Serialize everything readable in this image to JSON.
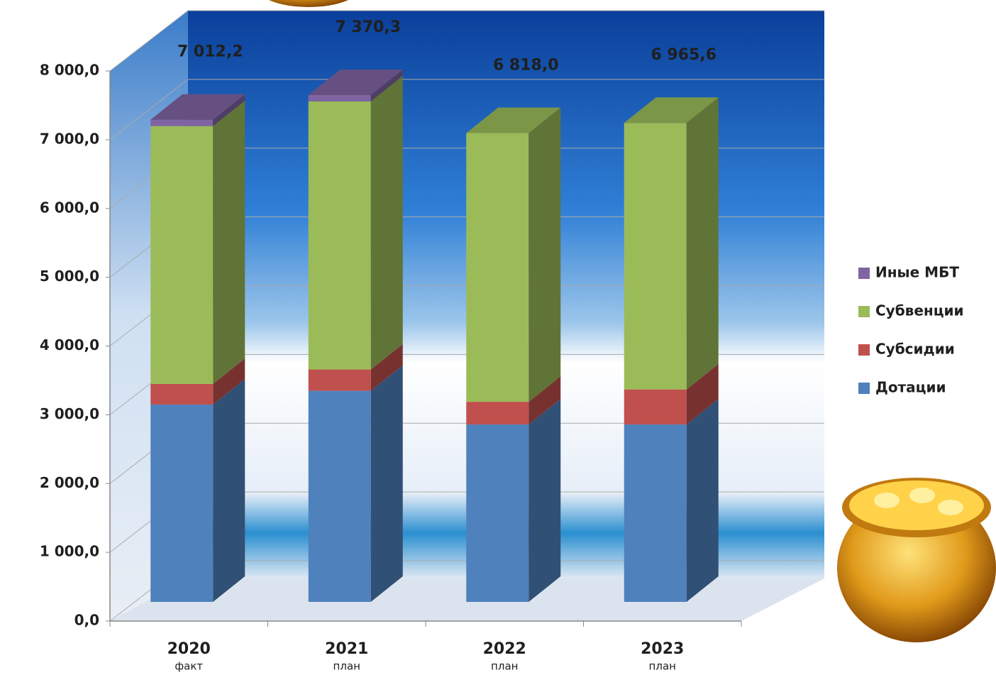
{
  "chart_data": {
    "type": "bar3d-stacked",
    "categories": [
      "2020",
      "2021",
      "2022",
      "2023"
    ],
    "category_notes": [
      "факт",
      "план",
      "план",
      "план"
    ],
    "series": [
      {
        "name": "Дотации",
        "color": "#4f81bd",
        "values": [
          2870,
          3070,
          2580,
          2580
        ]
      },
      {
        "name": "Субсидии",
        "color": "#c0504d",
        "values": [
          300,
          310,
          330,
          510
        ]
      },
      {
        "name": "Субвенции",
        "color": "#9bbb59",
        "values": [
          3750,
          3900,
          3908,
          3875.6
        ]
      },
      {
        "name": "Иные МБТ",
        "color": "#8064a2",
        "values": [
          92.2,
          90.3,
          0,
          0
        ]
      }
    ],
    "totals": [
      7012.2,
      7370.3,
      6818.0,
      6965.6
    ],
    "total_labels": [
      "7 012,2",
      "7 370,3",
      "6 818,0",
      "6 965,6"
    ],
    "ylim": [
      0,
      8000
    ],
    "yticks": [
      {
        "value": 0,
        "label": "0,0"
      },
      {
        "value": 1000,
        "label": "1 000,0"
      },
      {
        "value": 2000,
        "label": "2 000,0"
      },
      {
        "value": 3000,
        "label": "3 000,0"
      },
      {
        "value": 4000,
        "label": "4 000,0"
      },
      {
        "value": 5000,
        "label": "5 000,0"
      },
      {
        "value": 6000,
        "label": "6 000,0"
      },
      {
        "value": 7000,
        "label": "7 000,0"
      },
      {
        "value": 8000,
        "label": "8 000,0"
      }
    ],
    "grid": true,
    "legend": "right"
  }
}
